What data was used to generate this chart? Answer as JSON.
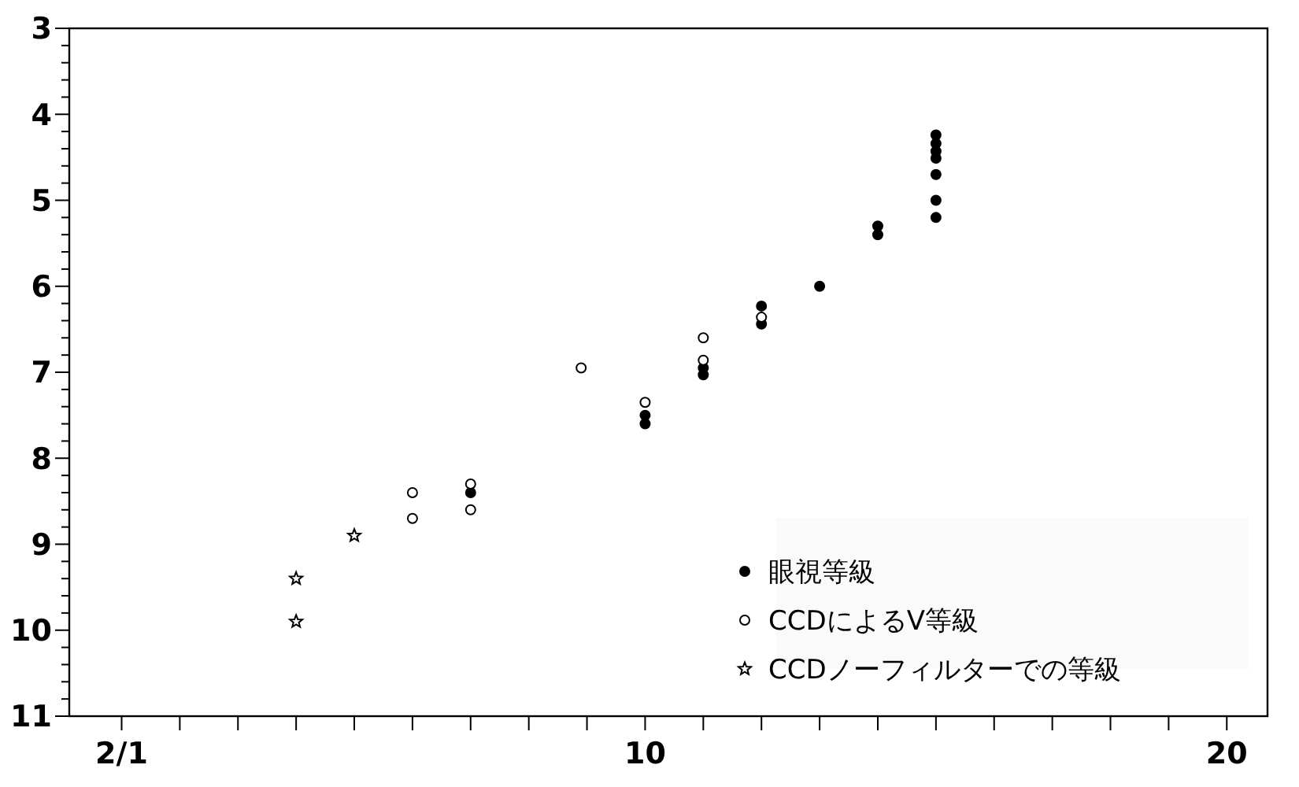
{
  "chart_data": {
    "type": "scatter",
    "legend": "bottom right",
    "grid": false,
    "xlim": [
      0.1,
      20.7
    ],
    "ylim": [
      11,
      3
    ],
    "xticks": [
      {
        "value": 1,
        "label": "2/1"
      },
      {
        "value": 2,
        "label": null
      },
      {
        "value": 3,
        "label": null
      },
      {
        "value": 4,
        "label": null
      },
      {
        "value": 5,
        "label": null
      },
      {
        "value": 6,
        "label": null
      },
      {
        "value": 7,
        "label": null
      },
      {
        "value": 8,
        "label": null
      },
      {
        "value": 9,
        "label": null
      },
      10,
      {
        "value": 11,
        "label": null
      },
      {
        "value": 12,
        "label": null
      },
      {
        "value": 13,
        "label": null
      },
      {
        "value": 14,
        "label": null
      },
      {
        "value": 15,
        "label": null
      },
      {
        "value": 16,
        "label": null
      },
      {
        "value": 17,
        "label": null
      },
      {
        "value": 18,
        "label": null
      },
      {
        "value": 19,
        "label": null
      },
      20
    ],
    "yticks": [
      3,
      {
        "value": 3.2,
        "label": null
      },
      {
        "value": 3.4,
        "label": null
      },
      {
        "value": 3.6,
        "label": null
      },
      {
        "value": 3.8,
        "label": null
      },
      4,
      {
        "value": 4.2,
        "label": null
      },
      {
        "value": 4.4,
        "label": null
      },
      {
        "value": 4.6,
        "label": null
      },
      {
        "value": 4.8,
        "label": null
      },
      5,
      {
        "value": 5.2,
        "label": null
      },
      {
        "value": 5.4,
        "label": null
      },
      {
        "value": 5.6,
        "label": null
      },
      {
        "value": 5.8,
        "label": null
      },
      6,
      {
        "value": 6.2,
        "label": null
      },
      {
        "value": 6.4,
        "label": null
      },
      {
        "value": 6.6,
        "label": null
      },
      {
        "value": 6.8,
        "label": null
      },
      7,
      {
        "value": 7.2,
        "label": null
      },
      {
        "value": 7.4,
        "label": null
      },
      {
        "value": 7.6,
        "label": null
      },
      {
        "value": 7.8,
        "label": null
      },
      8,
      {
        "value": 8.2,
        "label": null
      },
      {
        "value": 8.4,
        "label": null
      },
      {
        "value": 8.6,
        "label": null
      },
      {
        "value": 8.8,
        "label": null
      },
      9,
      {
        "value": 9.2,
        "label": null
      },
      {
        "value": 9.4,
        "label": null
      },
      {
        "value": 9.6,
        "label": null
      },
      {
        "value": 9.8,
        "label": null
      },
      10,
      {
        "value": 10.2,
        "label": null
      },
      {
        "value": 10.4,
        "label": null
      },
      {
        "value": 10.6,
        "label": null
      },
      {
        "value": 10.8,
        "label": null
      },
      11
    ],
    "series": [
      {
        "name": "眼視等級",
        "color": "#000000",
        "marker": "circle",
        "x": [
          7,
          10,
          10,
          11,
          11,
          12,
          12,
          13,
          14,
          14,
          15,
          15,
          15,
          15,
          15,
          15,
          15
        ],
        "values": [
          8.4,
          7.5,
          7.6,
          6.95,
          7.03,
          6.23,
          6.44,
          6.0,
          5.3,
          5.4,
          4.24,
          4.34,
          4.43,
          4.51,
          4.7,
          5.0,
          5.2
        ]
      },
      {
        "name": "CCDによるV等級",
        "color": "#ffffff",
        "marker": "circle",
        "x": [
          6,
          6,
          7,
          7,
          8.9,
          10,
          11,
          11,
          12
        ],
        "values": [
          8.4,
          8.7,
          8.3,
          8.6,
          6.95,
          7.35,
          6.6,
          6.86,
          6.36
        ]
      },
      {
        "name": "CCDノーフィルターでの等級",
        "color": "#000000",
        "marker": "star",
        "x": [
          4,
          4,
          5
        ],
        "values": [
          9.4,
          9.9,
          8.9
        ]
      }
    ]
  }
}
